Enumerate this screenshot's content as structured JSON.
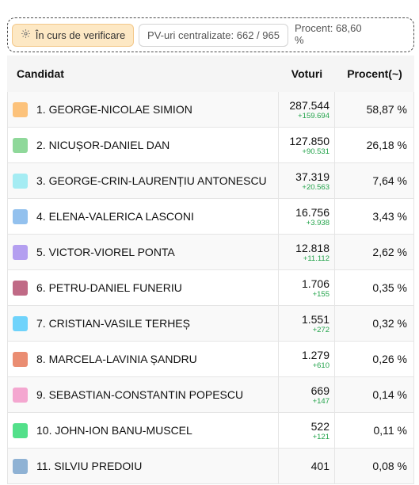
{
  "status_bar": {
    "status_label": "În curs de verificare",
    "status_icon": "gear-icon",
    "pv_label": "PV-uri centralizate: 662 / 965",
    "percent_label": "Procent: 68,60 %",
    "progress_fraction": 0.686,
    "progress_color": "#38bdf8"
  },
  "table": {
    "headers": {
      "candidate": "Candidat",
      "votes": "Voturi",
      "percent": "Procent(~)"
    },
    "rows": [
      {
        "name": "1. GEORGE-NICOLAE SIMION",
        "votes": "287.544",
        "delta": "+159.694",
        "percent": "58,87 %",
        "color": "#fcc27b"
      },
      {
        "name": "2. NICUȘOR-DANIEL DAN",
        "votes": "127.850",
        "delta": "+90.531",
        "percent": "26,18 %",
        "color": "#8fd89a"
      },
      {
        "name": "3. GEORGE-CRIN-LAURENȚIU ANTONESCU",
        "votes": "37.319",
        "delta": "+20.563",
        "percent": "7,64 %",
        "color": "#a5ecf3"
      },
      {
        "name": "4. ELENA-VALERICA LASCONI",
        "votes": "16.756",
        "delta": "+3.938",
        "percent": "3,43 %",
        "color": "#93c1ee"
      },
      {
        "name": "5. VICTOR-VIOREL PONTA",
        "votes": "12.818",
        "delta": "+11.112",
        "percent": "2,62 %",
        "color": "#b49ff0"
      },
      {
        "name": "6. PETRU-DANIEL FUNERIU",
        "votes": "1.706",
        "delta": "+155",
        "percent": "0,35 %",
        "color": "#c06a86"
      },
      {
        "name": "7. CRISTIAN-VASILE TERHEȘ",
        "votes": "1.551",
        "delta": "+272",
        "percent": "0,32 %",
        "color": "#6fd3fb"
      },
      {
        "name": "8. MARCELA-LAVINIA ȘANDRU",
        "votes": "1.279",
        "delta": "+610",
        "percent": "0,26 %",
        "color": "#ea8d72"
      },
      {
        "name": "9. SEBASTIAN-CONSTANTIN POPESCU",
        "votes": "669",
        "delta": "+147",
        "percent": "0,14 %",
        "color": "#f4a7d0"
      },
      {
        "name": "10. JOHN-ION BANU-MUSCEL",
        "votes": "522",
        "delta": "+121",
        "percent": "0,11 %",
        "color": "#53e08a"
      },
      {
        "name": "11. SILVIU PREDOIU",
        "votes": "401",
        "delta": "",
        "percent": "0,08 %",
        "color": "#8fb2d4"
      }
    ]
  }
}
